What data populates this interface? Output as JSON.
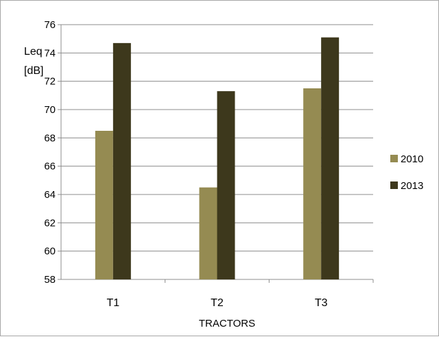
{
  "chart_data": {
    "type": "bar",
    "title": "",
    "xlabel": "TRACTORS",
    "ylabel_lines": [
      "Leq",
      "[dB]"
    ],
    "categories": [
      "T1",
      "T2",
      "T3"
    ],
    "series": [
      {
        "name": "2010",
        "color": "#958b52",
        "values": [
          68.5,
          64.5,
          71.5
        ]
      },
      {
        "name": "2013",
        "color": "#3d381c",
        "values": [
          74.7,
          71.3,
          75.1
        ]
      }
    ],
    "ylim": [
      58,
      76
    ],
    "yticks": [
      58,
      60,
      62,
      64,
      66,
      68,
      70,
      72,
      74,
      76
    ],
    "grid": true,
    "legend": "right"
  }
}
